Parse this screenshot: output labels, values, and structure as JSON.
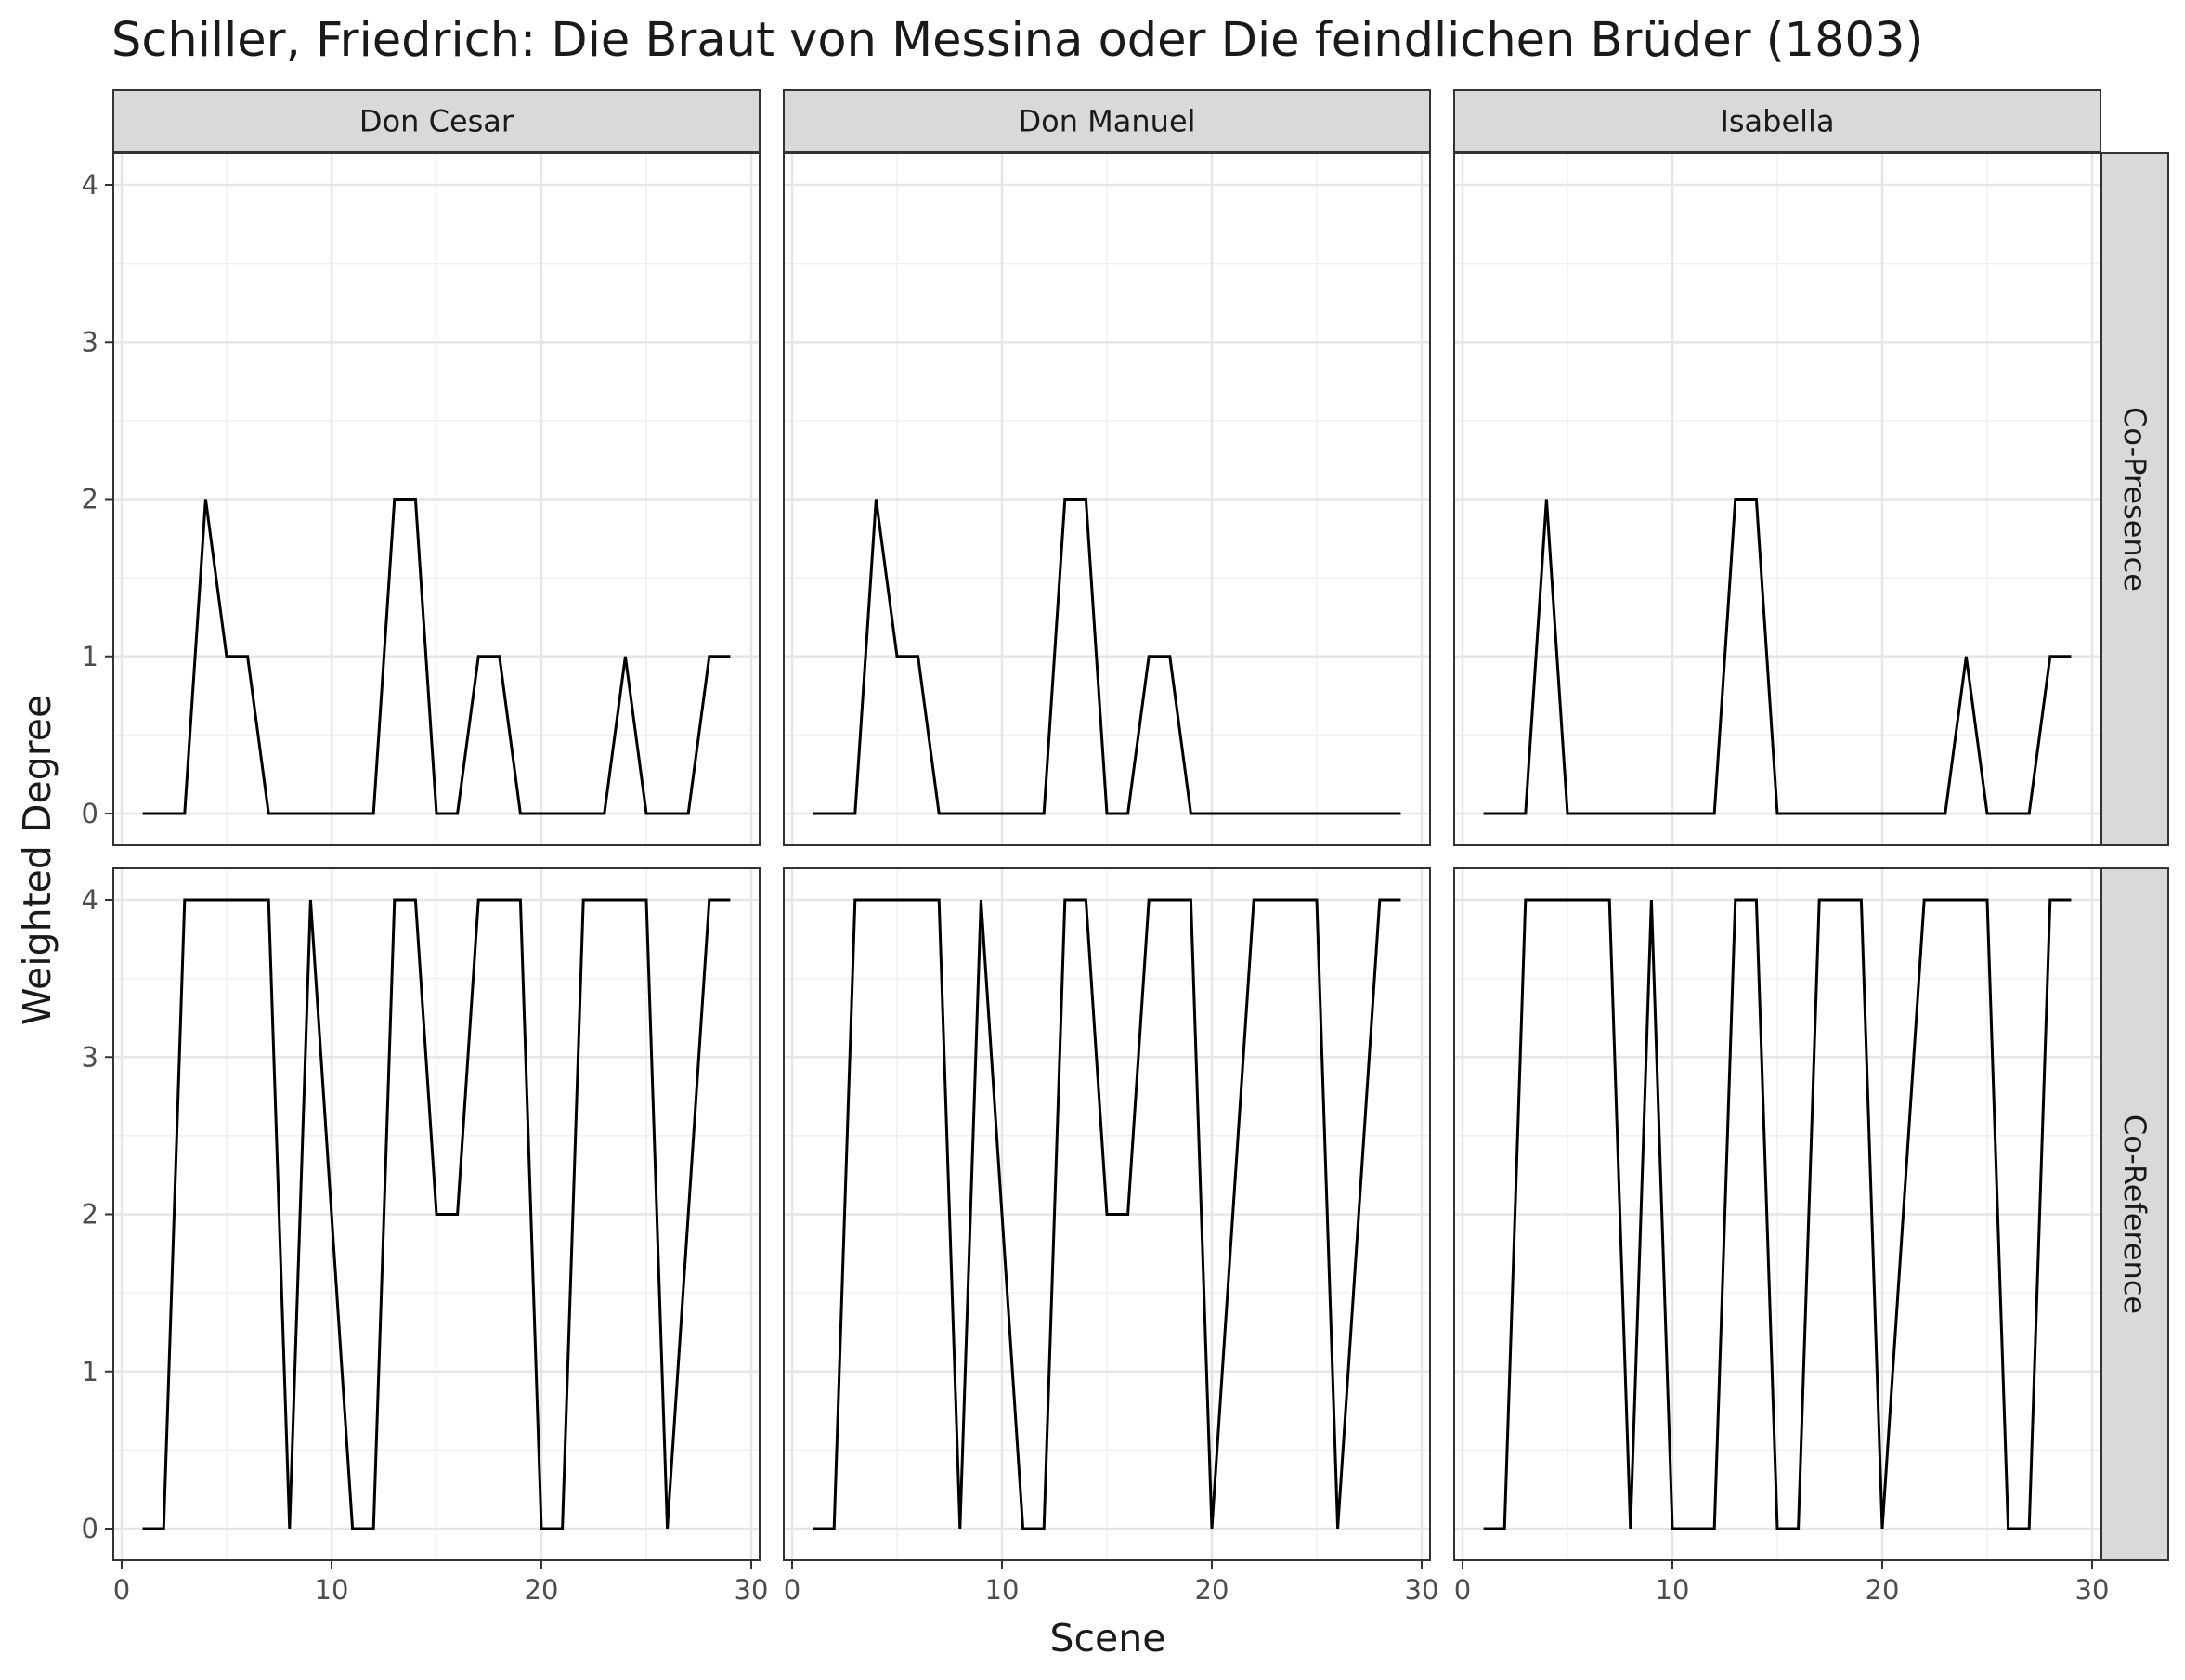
{
  "chart_data": {
    "type": "line",
    "title": "Schiller, Friedrich: Die Braut von Messina oder Die feindlichen Brüder (1803)",
    "xlabel": "Scene",
    "ylabel": "Weighted Degree",
    "xlim": [
      0,
      30
    ],
    "ylim": [
      0,
      4
    ],
    "x_ticks": [
      0,
      10,
      20,
      30
    ],
    "y_ticks": [
      0,
      1,
      2,
      3,
      4
    ],
    "grid": true,
    "columns": [
      "Don Cesar",
      "Don Manuel",
      "Isabella"
    ],
    "rows": [
      "Co-Presence",
      "Co-Reference"
    ],
    "x": [
      1,
      2,
      3,
      4,
      5,
      6,
      7,
      8,
      9,
      10,
      11,
      12,
      13,
      14,
      15,
      16,
      17,
      18,
      19,
      20,
      21,
      22,
      23,
      24,
      25,
      26,
      27,
      28,
      29
    ],
    "panels": [
      {
        "column": "Don Cesar",
        "row": "Co-Presence",
        "values": [
          0,
          0,
          0,
          2,
          1,
          1,
          0,
          0,
          0,
          0,
          0,
          0,
          2,
          2,
          0,
          0,
          1,
          1,
          0,
          0,
          0,
          0,
          0,
          1,
          0,
          0,
          0,
          1,
          1
        ]
      },
      {
        "column": "Don Manuel",
        "row": "Co-Presence",
        "values": [
          0,
          0,
          0,
          2,
          1,
          1,
          0,
          0,
          0,
          0,
          0,
          0,
          2,
          2,
          0,
          0,
          1,
          1,
          0,
          0,
          0,
          0,
          0,
          0,
          0,
          0,
          0,
          0,
          0
        ]
      },
      {
        "column": "Isabella",
        "row": "Co-Presence",
        "values": [
          0,
          0,
          0,
          2,
          0,
          0,
          0,
          0,
          0,
          0,
          0,
          0,
          2,
          2,
          0,
          0,
          0,
          0,
          0,
          0,
          0,
          0,
          0,
          1,
          0,
          0,
          0,
          1,
          1
        ]
      },
      {
        "column": "Don Cesar",
        "row": "Co-Reference",
        "values": [
          0,
          0,
          4,
          4,
          4,
          4,
          4,
          0,
          4,
          2,
          0,
          0,
          4,
          4,
          2,
          2,
          4,
          4,
          4,
          0,
          0,
          4,
          4,
          4,
          4,
          0,
          2,
          4,
          4
        ]
      },
      {
        "column": "Don Manuel",
        "row": "Co-Reference",
        "values": [
          0,
          0,
          4,
          4,
          4,
          4,
          4,
          0,
          4,
          2,
          0,
          0,
          4,
          4,
          2,
          2,
          4,
          4,
          4,
          0,
          2,
          4,
          4,
          4,
          4,
          0,
          2,
          4,
          4
        ]
      },
      {
        "column": "Isabella",
        "row": "Co-Reference",
        "values": [
          0,
          0,
          4,
          4,
          4,
          4,
          4,
          0,
          4,
          0,
          0,
          0,
          4,
          4,
          0,
          0,
          4,
          4,
          4,
          0,
          2,
          4,
          4,
          4,
          4,
          0,
          0,
          4,
          4
        ]
      }
    ]
  }
}
